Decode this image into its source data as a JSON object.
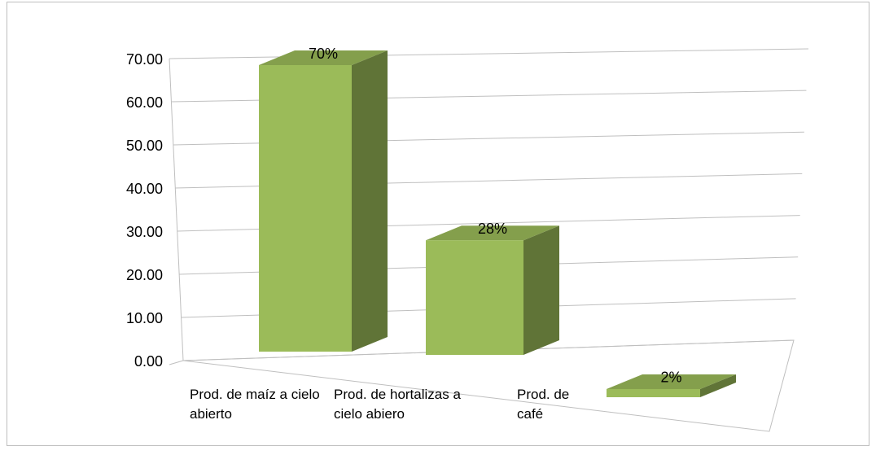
{
  "chart_data": {
    "type": "bar3d",
    "categories": [
      "Prod. de maíz a cielo abierto",
      "Prod. de hortalizas a cielo abiero",
      "Prod. de café"
    ],
    "values": [
      70,
      28,
      2
    ],
    "value_labels": [
      "70%",
      "28%",
      "2%"
    ],
    "color": "#9bbb59",
    "ylim": [
      0,
      70
    ],
    "yticks": [
      {
        "value": 0,
        "label": "0.00"
      },
      {
        "value": 10,
        "label": "10.00"
      },
      {
        "value": 20,
        "label": "20.00"
      },
      {
        "value": 30,
        "label": "30.00"
      },
      {
        "value": 40,
        "label": "40.00"
      },
      {
        "value": 50,
        "label": "50.00"
      },
      {
        "value": 60,
        "label": "60.00"
      },
      {
        "value": 70,
        "label": "70.00"
      }
    ],
    "grid": true
  }
}
